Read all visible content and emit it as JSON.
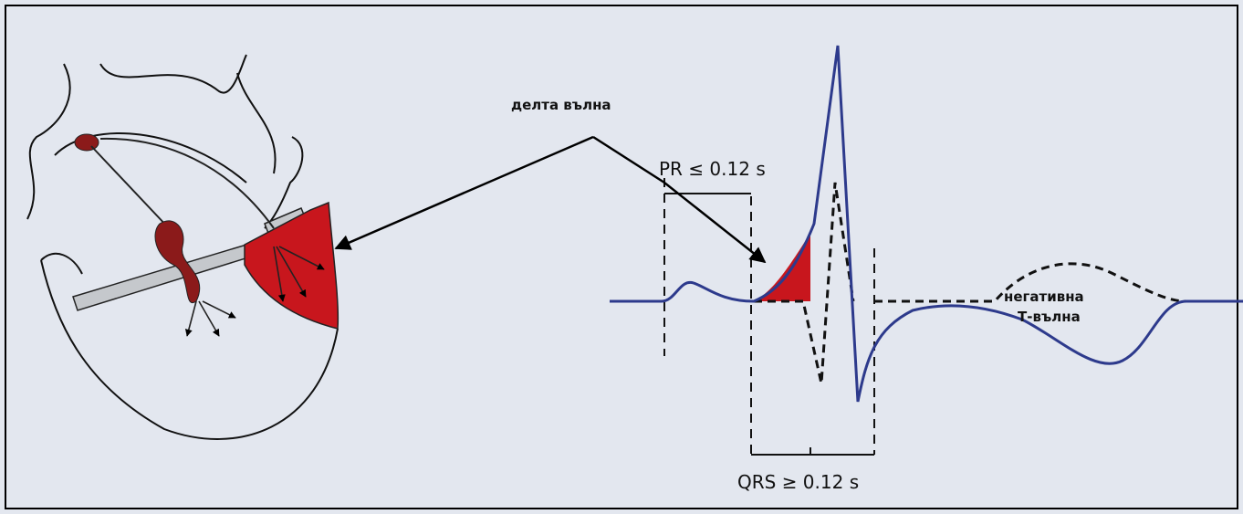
{
  "labels": {
    "delta_wave": "делта вълна",
    "pr": "PR ≤ 0.12 s",
    "qrs": "QRS ≥ 0.12 s",
    "negative_t": [
      "негативна",
      "Т-вълна"
    ]
  }
}
